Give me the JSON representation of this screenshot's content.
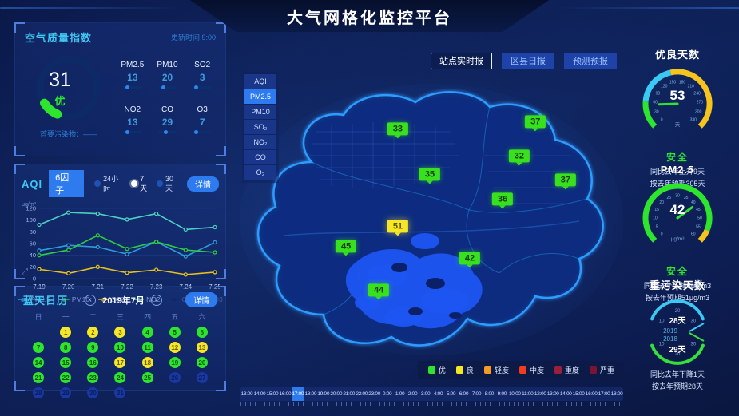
{
  "header": {
    "title": "大气网格化监控平台"
  },
  "air_quality_panel": {
    "title": "空气质量指数",
    "update_time": "更新时间 9:00",
    "aqi_value": "31",
    "aqi_grade": "优",
    "primary_pollutant": "首要污染物：——",
    "pollutants": [
      {
        "name": "PM2.5",
        "value": "13",
        "pct": 13
      },
      {
        "name": "PM10",
        "value": "20",
        "pct": 20
      },
      {
        "name": "SO2",
        "value": "3",
        "pct": 5
      },
      {
        "name": "NO2",
        "value": "13",
        "pct": 13
      },
      {
        "name": "CO",
        "value": "29",
        "pct": 29
      },
      {
        "name": "O3",
        "value": "7",
        "pct": 8
      }
    ]
  },
  "trend_panel": {
    "title": "AQI",
    "factor_badge": "6因子",
    "ranges": [
      {
        "label": "24小时",
        "selected": false
      },
      {
        "label": "7天",
        "selected": true
      },
      {
        "label": "30天",
        "selected": false
      }
    ],
    "detail_button": "详情"
  },
  "chart_data": {
    "type": "line",
    "title": "AQI 6因子",
    "ylabel": "μg/m³",
    "ylim": [
      0,
      120
    ],
    "yticks": [
      0,
      20,
      40,
      60,
      80,
      100,
      120
    ],
    "x": [
      "7.19",
      "7.20",
      "7.21",
      "7.22",
      "7.23",
      "7.24",
      "7.25"
    ],
    "grid": true,
    "legend_position": "bottom",
    "series": [
      {
        "name": "PM2.5",
        "color": "#2f9bdb",
        "values": [
          48,
          57,
          54,
          42,
          63,
          38,
          62
        ]
      },
      {
        "name": "PM10",
        "color": "#2ecc40",
        "values": [
          40,
          49,
          74,
          51,
          63,
          49,
          45
        ]
      },
      {
        "name": "SO2",
        "color": "#e8c21a",
        "values": [
          16,
          9,
          20,
          10,
          15,
          7,
          11
        ]
      },
      {
        "name": "NO2",
        "color": "#4dd0c4",
        "values": [
          92,
          113,
          111,
          101,
          111,
          84,
          88
        ]
      },
      {
        "name": "CO",
        "color": "#0c2250",
        "values": []
      },
      {
        "name": "O3",
        "color": "#0c2250",
        "values": []
      }
    ]
  },
  "calendar_panel": {
    "title": "蓝天日历",
    "month_label": "2019年7月",
    "detail_button": "详情",
    "weekdays": [
      "日",
      "一",
      "二",
      "三",
      "四",
      "五",
      "六"
    ],
    "first_day_offset": 1,
    "days": [
      {
        "day": 1,
        "level": "liang"
      },
      {
        "day": 2,
        "level": "liang"
      },
      {
        "day": 3,
        "level": "liang"
      },
      {
        "day": 4,
        "level": "you"
      },
      {
        "day": 5,
        "level": "you"
      },
      {
        "day": 6,
        "level": "you"
      },
      {
        "day": 7,
        "level": "you"
      },
      {
        "day": 8,
        "level": "you"
      },
      {
        "day": 9,
        "level": "you"
      },
      {
        "day": 10,
        "level": "you"
      },
      {
        "day": 11,
        "level": "you"
      },
      {
        "day": 12,
        "level": "liang"
      },
      {
        "day": 13,
        "level": "liang"
      },
      {
        "day": 14,
        "level": "you"
      },
      {
        "day": 15,
        "level": "you"
      },
      {
        "day": 16,
        "level": "you"
      },
      {
        "day": 17,
        "level": "liang"
      },
      {
        "day": 18,
        "level": "liang"
      },
      {
        "day": 19,
        "level": "you"
      },
      {
        "day": 20,
        "level": "you"
      },
      {
        "day": 21,
        "level": "you"
      },
      {
        "day": 22,
        "level": "you"
      },
      {
        "day": 23,
        "level": "you"
      },
      {
        "day": 24,
        "level": "you"
      },
      {
        "day": 25,
        "level": "you"
      },
      {
        "day": 26,
        "level": "future"
      },
      {
        "day": 27,
        "level": "future"
      },
      {
        "day": 28,
        "level": "future"
      },
      {
        "day": 29,
        "level": "future"
      },
      {
        "day": 30,
        "level": "future"
      },
      {
        "day": 31,
        "level": "future"
      }
    ]
  },
  "map": {
    "report_tabs": [
      {
        "label": "站点实时报",
        "active": true
      },
      {
        "label": "区县日报",
        "active": false
      },
      {
        "label": "预测预报",
        "active": false
      }
    ],
    "layer_menu": [
      {
        "label": "AQI",
        "active": false
      },
      {
        "label": "PM2.5",
        "active": true
      },
      {
        "label": "PM10",
        "active": false
      },
      {
        "label": "SO₂",
        "active": false
      },
      {
        "label": "NO₂",
        "active": false
      },
      {
        "label": "CO",
        "active": false
      },
      {
        "label": "O₃",
        "active": false
      }
    ],
    "markers": [
      {
        "value": "33",
        "level": "you",
        "x": 41.0,
        "y": 18.9
      },
      {
        "value": "37",
        "level": "you",
        "x": 75.8,
        "y": 16.4
      },
      {
        "value": "32",
        "level": "you",
        "x": 71.7,
        "y": 28.3
      },
      {
        "value": "35",
        "level": "you",
        "x": 49.1,
        "y": 34.7
      },
      {
        "value": "37",
        "level": "you",
        "x": 83.4,
        "y": 36.7
      },
      {
        "value": "36",
        "level": "you",
        "x": 67.5,
        "y": 43.3
      },
      {
        "value": "51",
        "level": "liang",
        "x": 41.0,
        "y": 52.8
      },
      {
        "value": "45",
        "level": "you",
        "x": 27.9,
        "y": 59.7
      },
      {
        "value": "42",
        "level": "you",
        "x": 59.2,
        "y": 63.9
      },
      {
        "value": "44",
        "level": "you",
        "x": 36.2,
        "y": 75.0
      }
    ],
    "legend": [
      {
        "label": "优",
        "color": "#2ee52e"
      },
      {
        "label": "良",
        "color": "#f5e727"
      },
      {
        "label": "轻度",
        "color": "#f59a23"
      },
      {
        "label": "中度",
        "color": "#f23c1d"
      },
      {
        "label": "重度",
        "color": "#9c1f3a"
      },
      {
        "label": "严重",
        "color": "#7a1430"
      }
    ],
    "timeline": {
      "times": [
        "13:00",
        "14:00",
        "15:00",
        "16:00",
        "17:00",
        "18:00",
        "19:00",
        "20:00",
        "21:00",
        "22:00",
        "23:00",
        "0:00",
        "1:00",
        "2:00",
        "3:00",
        "4:00",
        "5:00",
        "6:00",
        "7:00",
        "8:00",
        "9:00",
        "10:00",
        "11:00",
        "12:00",
        "13:00",
        "14:00",
        "15:00",
        "16:00",
        "17:00",
        "18:00"
      ],
      "active_index": 4
    }
  },
  "right_stats": {
    "good_days": {
      "title": "优良天数",
      "value": "53",
      "unit": "天",
      "max": 330,
      "ticks": [
        0,
        30,
        60,
        90,
        120,
        150,
        180,
        210,
        240,
        270,
        300,
        330
      ],
      "segments": [
        {
          "to": 60,
          "color": "#2ee52e"
        },
        {
          "to": 150,
          "color": "#3ac8f5"
        },
        {
          "to": 330,
          "color": "#f5c51d"
        }
      ],
      "status": "安全",
      "line1": "同比去年上升9天",
      "line2": "按去年预期305天"
    },
    "pm25": {
      "title": "PM2.5",
      "value": "42",
      "unit": "μg/m³",
      "max": 60,
      "ticks": [
        0,
        5,
        10,
        15,
        20,
        25,
        30,
        35,
        40,
        45,
        50,
        55,
        60
      ],
      "segments": [
        {
          "to": 55,
          "color": "#2ee52e"
        },
        {
          "to": 60,
          "color": "#f5c51d"
        }
      ],
      "status": "安全",
      "line1": "同比去年下降3μg/m3",
      "line2": "按去年预期51μg/m3"
    },
    "heavy_days": {
      "title": "重污染天数",
      "top": {
        "year": "2019",
        "label": "28天",
        "color": "#3ac8f5"
      },
      "bottom": {
        "year": "2018",
        "label": "29天",
        "color": "#35e03a"
      },
      "ticks": [
        "10",
        "20",
        "30"
      ],
      "line1": "同比去年下降1天",
      "line2": "按去年预期28天"
    }
  }
}
